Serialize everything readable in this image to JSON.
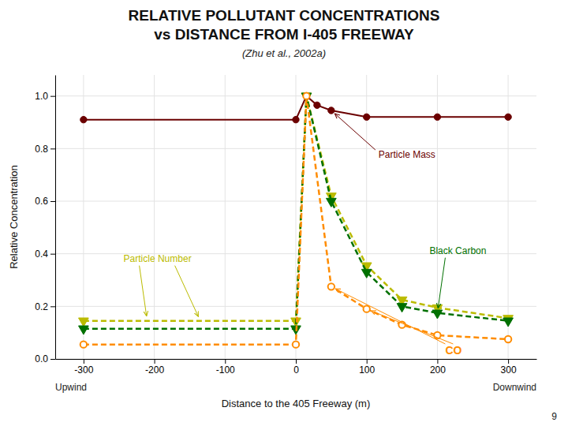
{
  "chart_data": {
    "type": "line",
    "title": [
      "RELATIVE POLLUTANT CONCENTRATIONS",
      "vs DISTANCE FROM I-405 FREEWAY"
    ],
    "subtitle": "(Zhu et al., 2002a)",
    "xlabel": "Distance to the 405 Freeway (m)",
    "ylabel": "Relative Concentration",
    "annotations": [
      "Upwind",
      "Downwind",
      "9"
    ],
    "xlim": [
      -340,
      340
    ],
    "ylim": [
      0.0,
      1.08
    ],
    "xticks": [
      -300,
      -200,
      -100,
      0,
      100,
      200,
      300
    ],
    "yticks": [
      {
        "value": 0,
        "label": "0.0"
      },
      0.2,
      0.4,
      0.6,
      0.8,
      {
        "value": 1,
        "label": "1.0"
      }
    ],
    "grid": true,
    "series": [
      {
        "name": "Particle Mass",
        "color": "#6B0000",
        "line_style": "solid",
        "marker": "circle",
        "x": [
          -300,
          0,
          15,
          30,
          50,
          100,
          200,
          300
        ],
        "values": [
          0.91,
          0.91,
          1.0,
          0.965,
          0.945,
          0.92,
          0.92,
          0.92
        ]
      },
      {
        "name": "Particle Number",
        "color": "#BBBB00",
        "line_style": "dashed",
        "marker": "triangle-down",
        "x": [
          -300,
          0,
          15,
          50,
          100,
          150,
          200,
          300
        ],
        "values": [
          0.145,
          0.145,
          1.0,
          0.62,
          0.355,
          0.225,
          0.195,
          0.155
        ]
      },
      {
        "name": "Black Carbon",
        "color": "#007000",
        "line_style": "dashed",
        "marker": "triangle-down",
        "x": [
          -300,
          0,
          15,
          50,
          100,
          150,
          200,
          300
        ],
        "values": [
          0.115,
          0.115,
          1.0,
          0.6,
          0.33,
          0.2,
          0.175,
          0.145
        ]
      },
      {
        "name": "CO",
        "color": "#FF8C00",
        "line_style": "dashed",
        "marker": "circle-open",
        "x": [
          -300,
          0,
          15,
          50,
          100,
          150,
          200,
          300
        ],
        "values": [
          0.055,
          0.055,
          1.0,
          0.275,
          0.19,
          0.13,
          0.09,
          0.075
        ]
      }
    ]
  }
}
